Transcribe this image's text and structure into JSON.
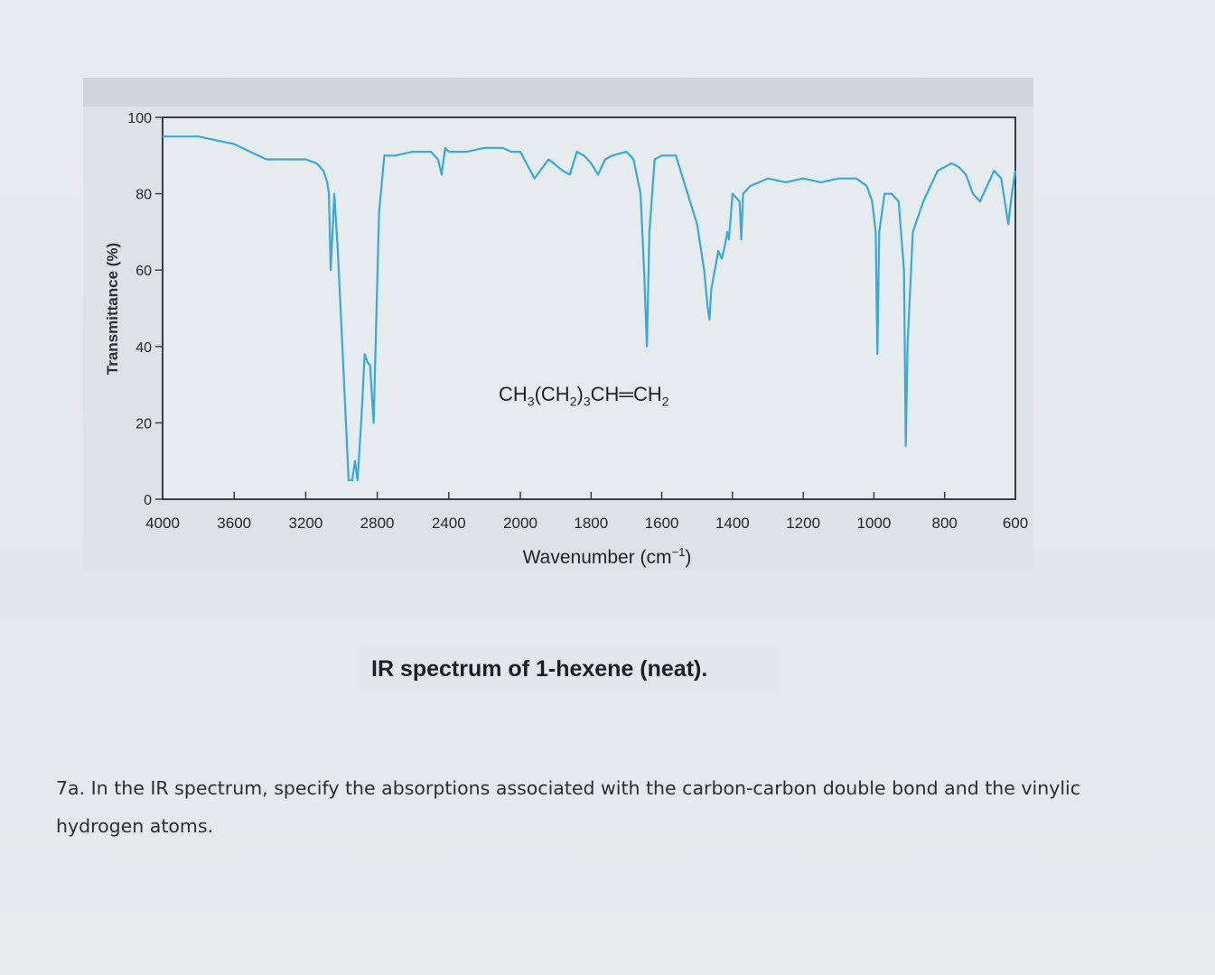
{
  "caption": "IR spectrum of 1-hexene (neat).",
  "question": "7a. In the IR spectrum, specify the absorptions associated with the carbon-carbon double bond and the vinylic hydrogen atoms.",
  "chart_data": {
    "type": "line",
    "title_parts": [
      "CH",
      "3",
      "(CH",
      "2",
      ")",
      "3",
      "CH",
      "═",
      "CH",
      "2"
    ],
    "xlabel": "Wavenumber (cm",
    "xlabel_sup": "−1",
    "xlabel_close": ")",
    "ylabel": "Transmittance (%)",
    "xlim": [
      4000,
      600
    ],
    "ylim": [
      0,
      100
    ],
    "x_reversed": true,
    "x_ticks": [
      4000,
      3600,
      3200,
      2800,
      2400,
      2000,
      1800,
      1600,
      1400,
      1200,
      1000,
      800,
      600
    ],
    "y_ticks": [
      0,
      20,
      40,
      60,
      80,
      100
    ],
    "grid": false,
    "line_color": "#3aa8d8",
    "series": [
      {
        "x": [
          4000,
          3800,
          3600,
          3420,
          3200,
          3140,
          3100,
          3080,
          3070,
          3060,
          3040,
          3020,
          2990,
          2960,
          2940,
          2925,
          2910,
          2890,
          2870,
          2855,
          2840,
          2820,
          2790,
          2760,
          2700,
          2600,
          2500,
          2460,
          2440,
          2420,
          2400,
          2300,
          2200,
          2100,
          2050,
          2000,
          1960,
          1920,
          1880,
          1860,
          1840,
          1820,
          1800,
          1780,
          1760,
          1740,
          1700,
          1680,
          1660,
          1650,
          1642,
          1635,
          1620,
          1600,
          1560,
          1500,
          1480,
          1470,
          1465,
          1460,
          1450,
          1440,
          1430,
          1420,
          1415,
          1410,
          1400,
          1380,
          1375,
          1370,
          1350,
          1300,
          1250,
          1200,
          1150,
          1100,
          1050,
          1020,
          1005,
          995,
          990,
          985,
          970,
          950,
          930,
          915,
          910,
          905,
          890,
          860,
          820,
          800,
          780,
          760,
          740,
          720,
          700,
          680,
          660,
          640,
          630,
          620,
          610,
          600
        ],
        "y": [
          95,
          95,
          93,
          89,
          89,
          88,
          86,
          83,
          80,
          60,
          80,
          65,
          35,
          5,
          5,
          10,
          5,
          20,
          38,
          36,
          35,
          20,
          75,
          90,
          90,
          91,
          91,
          89,
          85,
          92,
          91,
          91,
          92,
          92,
          91,
          91,
          84,
          89,
          86,
          85,
          91,
          90,
          88,
          85,
          89,
          90,
          91,
          89,
          80,
          60,
          40,
          70,
          89,
          90,
          90,
          72,
          60,
          50,
          47,
          55,
          60,
          65,
          63,
          67,
          70,
          68,
          80,
          78,
          68,
          80,
          82,
          84,
          83,
          84,
          83,
          84,
          84,
          82,
          78,
          70,
          38,
          70,
          80,
          80,
          78,
          60,
          14,
          40,
          70,
          78,
          86,
          87,
          88,
          87,
          85,
          80,
          78,
          82,
          86,
          84,
          78,
          72,
          80,
          86
        ]
      }
    ]
  }
}
